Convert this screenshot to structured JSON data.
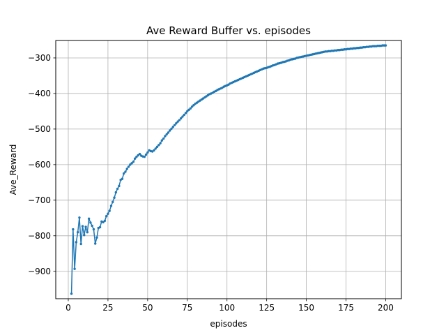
{
  "chart_data": {
    "type": "line",
    "title": "Ave Reward Buffer vs. episodes",
    "xlabel": "episodes",
    "ylabel": "Ave_Reward",
    "xlim": [
      -7.9,
      209.9
    ],
    "ylim": [
      -977,
      -251
    ],
    "xticks": [
      0,
      25,
      50,
      75,
      100,
      125,
      150,
      175,
      200
    ],
    "yticks": [
      -900,
      -800,
      -700,
      -600,
      -500,
      -400,
      -300
    ],
    "xtick_labels": [
      "0",
      "25",
      "50",
      "75",
      "100",
      "125",
      "150",
      "175",
      "200"
    ],
    "ytick_labels": [
      "−900",
      "−800",
      "−700",
      "−600",
      "−500",
      "−400",
      "−300"
    ],
    "grid": true,
    "legend": false,
    "series_color": "#1f77b4",
    "marker": "circle",
    "series": [
      {
        "x": [
          2,
          3,
          4,
          5,
          6,
          7,
          8,
          9,
          10,
          11,
          12,
          13,
          14,
          15,
          16,
          17,
          18,
          19,
          20,
          21,
          22,
          23,
          24,
          25,
          26,
          27,
          28,
          29,
          30,
          31,
          32,
          33,
          34,
          35,
          36,
          37,
          38,
          39,
          40,
          41,
          42,
          43,
          44,
          45,
          46,
          47,
          48,
          49,
          50,
          51,
          52,
          53,
          54,
          55,
          56,
          57,
          58,
          59,
          60,
          61,
          62,
          63,
          64,
          65,
          66,
          67,
          68,
          69,
          70,
          71,
          72,
          73,
          74,
          75,
          76,
          77,
          78,
          79,
          80,
          81,
          82,
          83,
          84,
          85,
          86,
          87,
          88,
          89,
          90,
          91,
          92,
          93,
          94,
          95,
          96,
          97,
          98,
          99,
          100,
          101,
          102,
          103,
          104,
          105,
          106,
          107,
          108,
          109,
          110,
          111,
          112,
          113,
          114,
          115,
          116,
          117,
          118,
          119,
          120,
          121,
          122,
          123,
          124,
          125,
          126,
          127,
          128,
          129,
          130,
          131,
          132,
          133,
          134,
          135,
          136,
          137,
          138,
          139,
          140,
          141,
          142,
          143,
          144,
          145,
          146,
          147,
          148,
          149,
          150,
          151,
          152,
          153,
          154,
          155,
          156,
          157,
          158,
          159,
          160,
          161,
          162,
          163,
          164,
          165,
          166,
          167,
          168,
          169,
          170,
          171,
          172,
          173,
          174,
          175,
          176,
          177,
          178,
          179,
          180,
          181,
          182,
          183,
          184,
          185,
          186,
          187,
          188,
          189,
          190,
          191,
          192,
          193,
          194,
          195,
          196,
          197,
          198,
          199,
          200
        ],
        "values": [
          -963,
          -782,
          -893,
          -818,
          -790,
          -749,
          -823,
          -773,
          -798,
          -775,
          -790,
          -752,
          -763,
          -772,
          -782,
          -822,
          -805,
          -778,
          -776,
          -760,
          -762,
          -758,
          -745,
          -738,
          -730,
          -716,
          -705,
          -693,
          -678,
          -668,
          -660,
          -643,
          -640,
          -625,
          -620,
          -612,
          -606,
          -600,
          -596,
          -592,
          -583,
          -578,
          -574,
          -570,
          -575,
          -577,
          -578,
          -572,
          -566,
          -560,
          -562,
          -563,
          -560,
          -555,
          -550,
          -545,
          -540,
          -532,
          -527,
          -520,
          -515,
          -510,
          -504,
          -499,
          -494,
          -489,
          -484,
          -479,
          -475,
          -470,
          -465,
          -460,
          -455,
          -450,
          -446,
          -442,
          -437,
          -433,
          -429,
          -426,
          -423,
          -420,
          -417,
          -414,
          -411,
          -408,
          -405,
          -402,
          -400,
          -398,
          -395,
          -393,
          -390,
          -388,
          -386,
          -384,
          -381,
          -379,
          -377,
          -375,
          -372,
          -370,
          -368,
          -366,
          -364,
          -362,
          -360,
          -358,
          -356,
          -354,
          -352,
          -350,
          -348,
          -346,
          -344,
          -342,
          -340,
          -338,
          -336,
          -334,
          -332,
          -330,
          -329,
          -328,
          -326,
          -325,
          -323,
          -321,
          -320,
          -318,
          -316,
          -315,
          -314,
          -312,
          -311,
          -310,
          -308,
          -307,
          -305,
          -304,
          -303,
          -302,
          -300,
          -299,
          -298,
          -297,
          -296,
          -295,
          -294,
          -293,
          -292,
          -291,
          -290,
          -289,
          -288,
          -287,
          -286,
          -285,
          -284,
          -283,
          -282,
          -282,
          -281,
          -281,
          -280,
          -280,
          -279,
          -279,
          -278,
          -278,
          -277,
          -277,
          -276,
          -276,
          -275,
          -275,
          -274,
          -274,
          -273,
          -273,
          -272,
          -272,
          -271,
          -271,
          -270,
          -270,
          -269,
          -269,
          -268,
          -268,
          -267,
          -267,
          -267,
          -266,
          -266,
          -266,
          -265,
          -265,
          -265
        ]
      }
    ]
  }
}
